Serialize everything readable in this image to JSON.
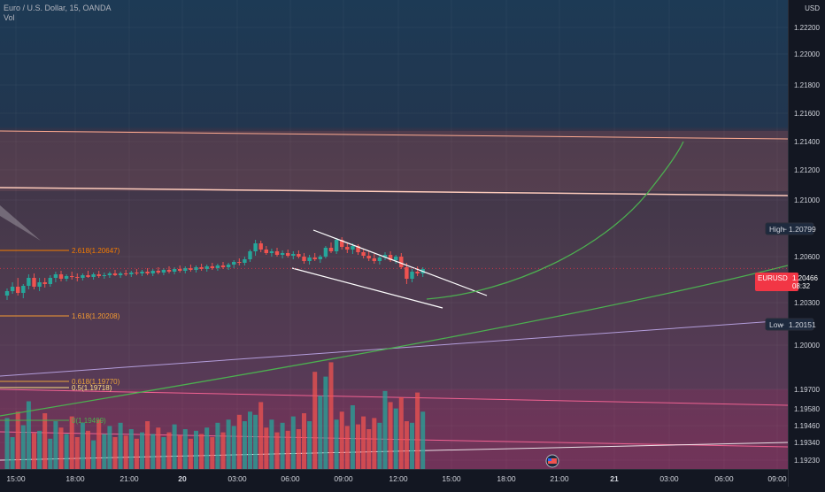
{
  "header": {
    "symbol_title": "Euro / U.S. Dollar, 15, OANDA",
    "indicator": "Vol"
  },
  "price_axis": {
    "currency": "USD",
    "ticks": [
      "1.22200",
      "1.22000",
      "1.21800",
      "1.21600",
      "1.21400",
      "1.21200",
      "1.21000",
      "1.20600",
      "1.20300",
      "1.20000",
      "1.19700",
      "1.19580",
      "1.19460",
      "1.19340",
      "1.19230"
    ],
    "high_label": "High",
    "high_value": "1.20799",
    "low_label": "Low",
    "low_value": "1.20151",
    "current_symbol": "EURUSD",
    "current_value": "1.20466",
    "countdown": "08:32"
  },
  "time_axis": {
    "labels": [
      "15:00",
      "18:00",
      "21:00",
      "20",
      "03:00",
      "06:00",
      "09:00",
      "12:00",
      "15:00",
      "18:00",
      "21:00",
      "21",
      "03:00",
      "06:00",
      "09:00"
    ]
  },
  "fib_levels": [
    {
      "label": "2.618(1.20647)",
      "color": "#f57c00"
    },
    {
      "label": "1.618(1.20208)",
      "color": "#f59b31"
    },
    {
      "label": "0.618(1.19770)",
      "color": "#e8a33a"
    },
    {
      "label": "0.5(1.19718)",
      "color": "#ffe082"
    },
    {
      "label": "0(1.19499)",
      "color": "#4caf50"
    }
  ],
  "colors": {
    "background": "#131722",
    "up": "#26a69a",
    "down": "#ef5350",
    "high_badge": "#1e2a3e",
    "current_badge": "#f23645",
    "curve": "#4caf50",
    "channel": "#ffffff"
  },
  "chart_data": {
    "type": "candlestick",
    "title": "Euro / U.S. Dollar, 15, OANDA",
    "y_axis_side": "right",
    "y_range": [
      1.1922,
      1.2232
    ],
    "last_price": 1.20466,
    "session_high": 1.20799,
    "session_low": 1.20151,
    "candles": [
      [
        1.2016,
        1.2024,
        1.2011,
        1.2021
      ],
      [
        1.2021,
        1.2031,
        1.2018,
        1.2026
      ],
      [
        1.2026,
        1.2036,
        1.2016,
        1.2019
      ],
      [
        1.2019,
        1.2029,
        1.2013,
        1.2027
      ],
      [
        1.2027,
        1.204,
        1.2023,
        1.2036
      ],
      [
        1.2036,
        1.2041,
        1.2023,
        1.2026
      ],
      [
        1.2026,
        1.2036,
        1.2021,
        1.2031
      ],
      [
        1.2031,
        1.2036,
        1.2025,
        1.2029
      ],
      [
        1.2029,
        1.2039,
        1.2026,
        1.2036
      ],
      [
        1.2036,
        1.2043,
        1.2031,
        1.204
      ],
      [
        1.204,
        1.2044,
        1.2032,
        1.2035
      ],
      [
        1.2035,
        1.204,
        1.2032,
        1.2038
      ],
      [
        1.2038,
        1.2043,
        1.2034,
        1.2037
      ],
      [
        1.2037,
        1.2041,
        1.2032,
        1.2036
      ],
      [
        1.2036,
        1.2041,
        1.2033,
        1.2039
      ],
      [
        1.2039,
        1.2044,
        1.2036,
        1.2037
      ],
      [
        1.2037,
        1.2042,
        1.2034,
        1.204
      ],
      [
        1.204,
        1.2044,
        1.2036,
        1.2038
      ],
      [
        1.2038,
        1.2042,
        1.2035,
        1.2039
      ],
      [
        1.2039,
        1.2043,
        1.2036,
        1.2041
      ],
      [
        1.2041,
        1.2045,
        1.2038,
        1.2039
      ],
      [
        1.2039,
        1.2043,
        1.2036,
        1.2041
      ],
      [
        1.2041,
        1.2045,
        1.2038,
        1.204
      ],
      [
        1.204,
        1.2044,
        1.2037,
        1.2042
      ],
      [
        1.2042,
        1.2046,
        1.2039,
        1.2041
      ],
      [
        1.2041,
        1.2045,
        1.2038,
        1.2043
      ],
      [
        1.2043,
        1.2047,
        1.2039,
        1.2041
      ],
      [
        1.2041,
        1.2046,
        1.2038,
        1.2044
      ],
      [
        1.2044,
        1.2048,
        1.204,
        1.2042
      ],
      [
        1.2042,
        1.2047,
        1.2039,
        1.2045
      ],
      [
        1.2045,
        1.2049,
        1.2041,
        1.2043
      ],
      [
        1.2043,
        1.2048,
        1.204,
        1.2046
      ],
      [
        1.2046,
        1.205,
        1.2042,
        1.2044
      ],
      [
        1.2044,
        1.2049,
        1.2041,
        1.2047
      ],
      [
        1.2047,
        1.2051,
        1.2043,
        1.2045
      ],
      [
        1.2045,
        1.205,
        1.2042,
        1.2048
      ],
      [
        1.2048,
        1.2052,
        1.2044,
        1.2046
      ],
      [
        1.2046,
        1.2051,
        1.2043,
        1.2049
      ],
      [
        1.2049,
        1.2053,
        1.2045,
        1.2047
      ],
      [
        1.2047,
        1.2052,
        1.2044,
        1.205
      ],
      [
        1.205,
        1.2054,
        1.2046,
        1.2048
      ],
      [
        1.2048,
        1.2053,
        1.2045,
        1.2051
      ],
      [
        1.2051,
        1.2056,
        1.2047,
        1.2054
      ],
      [
        1.2054,
        1.2058,
        1.205,
        1.2053
      ],
      [
        1.2053,
        1.206,
        1.205,
        1.2057
      ],
      [
        1.2057,
        1.2068,
        1.2054,
        1.2066
      ],
      [
        1.2066,
        1.2079,
        1.2061,
        1.2075
      ],
      [
        1.2075,
        1.2078,
        1.2065,
        1.2068
      ],
      [
        1.2068,
        1.2072,
        1.2062,
        1.2064
      ],
      [
        1.2064,
        1.2069,
        1.206,
        1.2066
      ],
      [
        1.2066,
        1.207,
        1.206,
        1.2062
      ],
      [
        1.2062,
        1.2067,
        1.2058,
        1.2064
      ],
      [
        1.2064,
        1.2068,
        1.2059,
        1.2061
      ],
      [
        1.2061,
        1.2066,
        1.2057,
        1.2063
      ],
      [
        1.2063,
        1.2067,
        1.2058,
        1.206
      ],
      [
        1.206,
        1.2064,
        1.2052,
        1.2055
      ],
      [
        1.2055,
        1.2062,
        1.2051,
        1.2059
      ],
      [
        1.2059,
        1.2064,
        1.2055,
        1.2057
      ],
      [
        1.2057,
        1.2062,
        1.2053,
        1.206
      ],
      [
        1.206,
        1.2072,
        1.2058,
        1.207
      ],
      [
        1.207,
        1.2076,
        1.2064,
        1.2066
      ],
      [
        1.2066,
        1.2081,
        1.2063,
        1.2079
      ],
      [
        1.2079,
        1.2082,
        1.2068,
        1.2071
      ],
      [
        1.2071,
        1.2075,
        1.2064,
        1.2068
      ],
      [
        1.2068,
        1.2075,
        1.2063,
        1.2072
      ],
      [
        1.2072,
        1.2074,
        1.2062,
        1.2065
      ],
      [
        1.2065,
        1.2068,
        1.2058,
        1.2061
      ],
      [
        1.2061,
        1.2066,
        1.2055,
        1.2058
      ],
      [
        1.2058,
        1.2063,
        1.2052,
        1.2055
      ],
      [
        1.2055,
        1.2061,
        1.2051,
        1.2059
      ],
      [
        1.2059,
        1.2065,
        1.2056,
        1.2062
      ],
      [
        1.2062,
        1.2066,
        1.2054,
        1.2056
      ],
      [
        1.2056,
        1.2062,
        1.2052,
        1.206
      ],
      [
        1.206,
        1.2064,
        1.2046,
        1.2048
      ],
      [
        1.2048,
        1.2053,
        1.2029,
        1.2035
      ],
      [
        1.2035,
        1.2046,
        1.2031,
        1.2043
      ],
      [
        1.2043,
        1.2049,
        1.2038,
        1.2041
      ],
      [
        1.2041,
        1.2048,
        1.2037,
        1.2046
      ]
    ],
    "volume": [
      64,
      40,
      72,
      55,
      85,
      45,
      48,
      70,
      38,
      60,
      52,
      44,
      66,
      40,
      58,
      48,
      36,
      62,
      44,
      54,
      40,
      58,
      42,
      50,
      38,
      46,
      60,
      44,
      52,
      40,
      46,
      56,
      42,
      50,
      38,
      48,
      44,
      52,
      40,
      58,
      46,
      62,
      54,
      68,
      60,
      72,
      68,
      84,
      52,
      62,
      46,
      58,
      48,
      66,
      50,
      70,
      60,
      122,
      92,
      116,
      134,
      62,
      72,
      54,
      80,
      56,
      66,
      50,
      64,
      58,
      98,
      84,
      76,
      90,
      60,
      58,
      96,
      72
    ],
    "drawings": {
      "fib_levels": [
        1.20647,
        1.20208,
        1.1977,
        1.19718,
        1.19499
      ],
      "horizontal_lines": [
        1.2142,
        1.2102
      ]
    }
  }
}
